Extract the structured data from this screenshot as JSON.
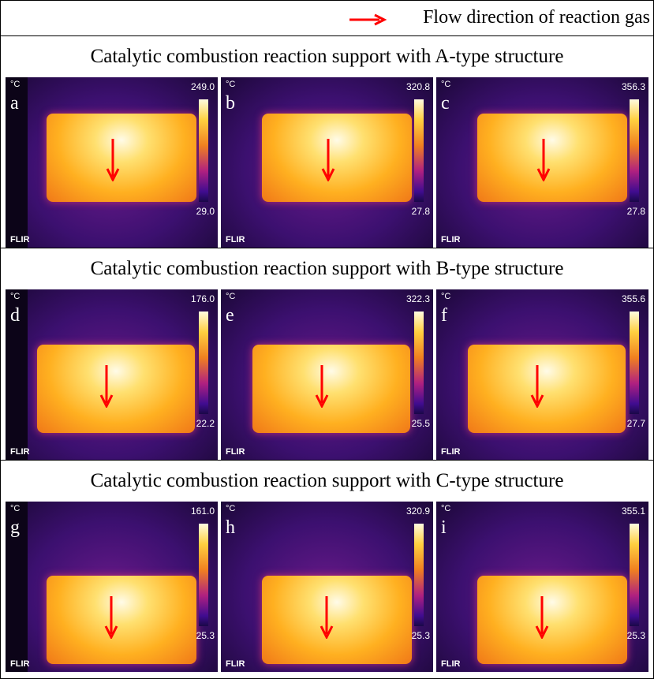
{
  "legend": {
    "text": "Flow direction of reaction gas"
  },
  "unit": "°C",
  "brand": "FLIR",
  "sections": [
    {
      "title": "Catalytic combustion reaction support with A-type structure",
      "panels": [
        {
          "label": "a",
          "max": "249.0",
          "min": "29.0"
        },
        {
          "label": "b",
          "max": "320.8",
          "min": "27.8"
        },
        {
          "label": "c",
          "max": "356.3",
          "min": "27.8"
        }
      ]
    },
    {
      "title": "Catalytic combustion reaction support with B-type structure",
      "panels": [
        {
          "label": "d",
          "max": "176.0",
          "min": "22.2"
        },
        {
          "label": "e",
          "max": "322.3",
          "min": "25.5"
        },
        {
          "label": "f",
          "max": "355.6",
          "min": "27.7"
        }
      ]
    },
    {
      "title": "Catalytic combustion reaction support with C-type structure",
      "panels": [
        {
          "label": "g",
          "max": "161.0",
          "min": "25.3"
        },
        {
          "label": "h",
          "max": "320.9",
          "min": "25.3"
        },
        {
          "label": "i",
          "max": "355.1",
          "min": "25.3"
        }
      ]
    }
  ]
}
